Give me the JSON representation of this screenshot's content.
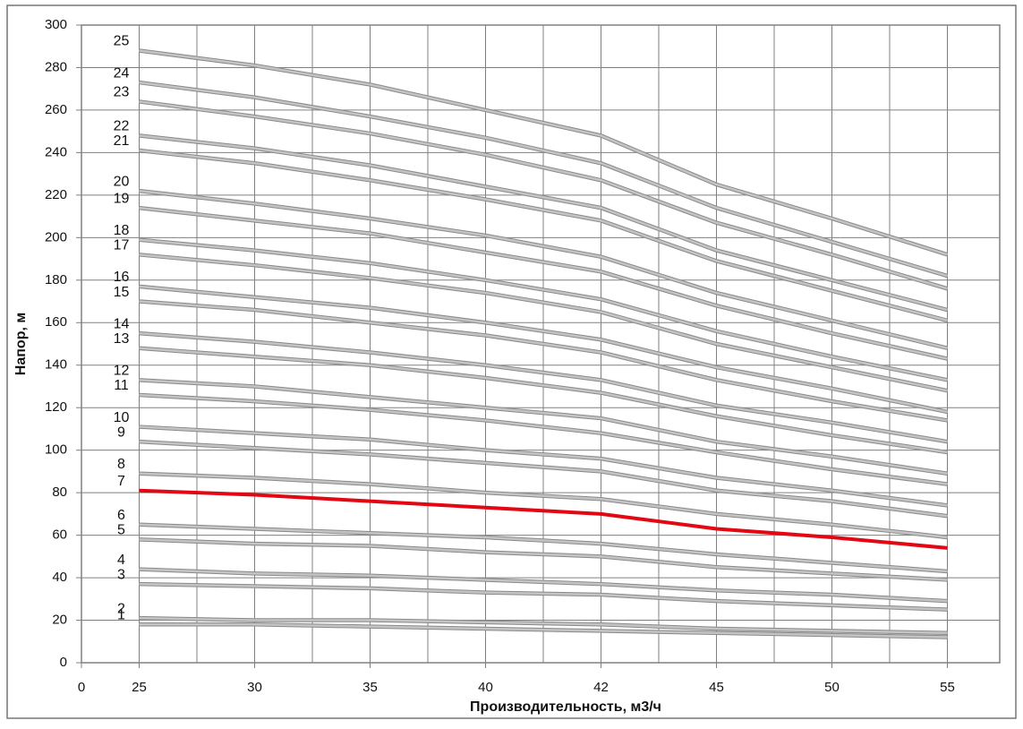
{
  "chart_data": {
    "type": "line",
    "ylabel": "Напор, м",
    "xlabel": "Производительность, м3/ч",
    "categories": [
      "0",
      "25",
      "30",
      "35",
      "40",
      "42",
      "45",
      "50",
      "55"
    ],
    "ylim": [
      0,
      300
    ],
    "yticks": [
      0,
      20,
      40,
      60,
      80,
      100,
      120,
      140,
      160,
      180,
      200,
      220,
      240,
      260,
      280,
      300
    ],
    "grid": true,
    "series": [
      {
        "name": "1",
        "color": "#c4c4c4",
        "values": [
          null,
          18,
          18,
          17,
          16,
          15,
          14,
          13,
          12
        ]
      },
      {
        "name": "2",
        "color": "#c4c4c4",
        "values": [
          null,
          21,
          20,
          20,
          19,
          18,
          16,
          15,
          14
        ]
      },
      {
        "name": "3",
        "color": "#c4c4c4",
        "values": [
          null,
          37,
          36,
          35,
          33,
          32,
          29,
          27,
          25
        ]
      },
      {
        "name": "4",
        "color": "#c4c4c4",
        "values": [
          null,
          44,
          42,
          41,
          39,
          37,
          34,
          32,
          29
        ]
      },
      {
        "name": "5",
        "color": "#c4c4c4",
        "values": [
          null,
          58,
          56,
          55,
          52,
          50,
          45,
          42,
          39
        ]
      },
      {
        "name": "6",
        "color": "#c4c4c4",
        "values": [
          null,
          65,
          63,
          61,
          59,
          56,
          51,
          47,
          43
        ]
      },
      {
        "name": "7",
        "color": "#e30613",
        "values": [
          null,
          81,
          79,
          76,
          73,
          70,
          63,
          59,
          54
        ]
      },
      {
        "name": "8",
        "color": "#c4c4c4",
        "values": [
          null,
          89,
          87,
          84,
          80,
          77,
          70,
          65,
          59
        ]
      },
      {
        "name": "9",
        "color": "#c4c4c4",
        "values": [
          null,
          104,
          101,
          98,
          94,
          90,
          81,
          76,
          69
        ]
      },
      {
        "name": "10",
        "color": "#c4c4c4",
        "values": [
          null,
          111,
          108,
          105,
          100,
          96,
          87,
          81,
          74
        ]
      },
      {
        "name": "11",
        "color": "#c4c4c4",
        "values": [
          null,
          126,
          123,
          119,
          114,
          108,
          99,
          91,
          84
        ]
      },
      {
        "name": "12",
        "color": "#c4c4c4",
        "values": [
          null,
          133,
          130,
          125,
          120,
          115,
          104,
          97,
          89
        ]
      },
      {
        "name": "13",
        "color": "#c4c4c4",
        "values": [
          null,
          148,
          144,
          140,
          134,
          127,
          116,
          107,
          99
        ]
      },
      {
        "name": "14",
        "color": "#c4c4c4",
        "values": [
          null,
          155,
          151,
          146,
          140,
          133,
          121,
          113,
          104
        ]
      },
      {
        "name": "15",
        "color": "#c4c4c4",
        "values": [
          null,
          170,
          166,
          160,
          154,
          146,
          133,
          123,
          114
        ]
      },
      {
        "name": "16",
        "color": "#c4c4c4",
        "values": [
          null,
          177,
          172,
          167,
          160,
          152,
          139,
          129,
          118
        ]
      },
      {
        "name": "17",
        "color": "#c4c4c4",
        "values": [
          null,
          192,
          187,
          181,
          174,
          165,
          150,
          139,
          128
        ]
      },
      {
        "name": "18",
        "color": "#c4c4c4",
        "values": [
          null,
          199,
          194,
          188,
          180,
          171,
          156,
          144,
          133
        ]
      },
      {
        "name": "19",
        "color": "#c4c4c4",
        "values": [
          null,
          214,
          208,
          202,
          193,
          184,
          168,
          155,
          143
        ]
      },
      {
        "name": "20",
        "color": "#c4c4c4",
        "values": [
          null,
          222,
          216,
          209,
          201,
          191,
          174,
          161,
          148
        ]
      },
      {
        "name": "21",
        "color": "#c4c4c4",
        "values": [
          null,
          241,
          235,
          227,
          218,
          208,
          189,
          175,
          161
        ]
      },
      {
        "name": "22",
        "color": "#c4c4c4",
        "values": [
          null,
          248,
          242,
          234,
          224,
          214,
          194,
          180,
          166
        ]
      },
      {
        "name": "23",
        "color": "#c4c4c4",
        "values": [
          null,
          264,
          257,
          249,
          239,
          227,
          207,
          192,
          176
        ]
      },
      {
        "name": "24",
        "color": "#c4c4c4",
        "values": [
          null,
          273,
          266,
          257,
          247,
          235,
          214,
          198,
          182
        ]
      },
      {
        "name": "25",
        "color": "#c4c4c4",
        "values": [
          null,
          288,
          281,
          272,
          260,
          248,
          225,
          209,
          192
        ]
      }
    ]
  }
}
